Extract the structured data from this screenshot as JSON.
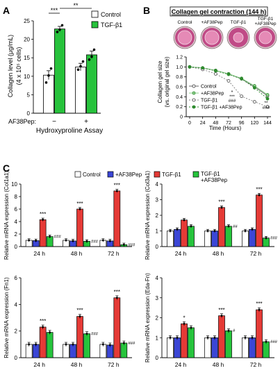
{
  "colors": {
    "control": "#ffffff",
    "af38pep": "#3b46d6",
    "tgfb1": "#e53a36",
    "tgfb1_af38pep": "#26c43c",
    "panelA_tgf": "#27c23c",
    "line_dark": "#2e8b2e",
    "line_light": "#8ed08e",
    "plate_bg": "#c04a86"
  },
  "chart_data": [
    {
      "panel": "A",
      "type": "bar",
      "ylabel_line1": "Collagen level (μg/mL)",
      "ylabel_line2": "(4 x 10⁵ cells)",
      "xlabel": "Hydroxyproline Assay",
      "x_row_label": "AF38Pep:",
      "x_groups": [
        "−",
        "+"
      ],
      "ylim": [
        0,
        25
      ],
      "yticks": [
        "0",
        "5",
        "10",
        "15",
        "20",
        "25"
      ],
      "legend": [
        "Control",
        "TGF-β1"
      ],
      "series": [
        {
          "name": "Control",
          "values": [
            10.3,
            12.5
          ],
          "errors": [
            1.2,
            1.0
          ],
          "points": [
            [
              8.3,
              10.2,
              12.1
            ],
            [
              11.8,
              12.7,
              14.0
            ]
          ]
        },
        {
          "name": "TGF-β1",
          "values": [
            22.8,
            15.8
          ],
          "errors": [
            0.7,
            1.0
          ],
          "points": [
            [
              22.0,
              22.6,
              23.8
            ],
            [
              14.5,
              15.3,
              17.2
            ]
          ]
        }
      ],
      "significance": [
        "***",
        "**"
      ]
    },
    {
      "panel": "B",
      "type": "line",
      "title": "Collagen gel contraction (144 h)",
      "plate_labels": [
        "Control",
        "+AF38Pep",
        "TGF-β1",
        "TGF-β1\n+AF38Pep"
      ],
      "ylabel_line1": "Collagen gel size",
      "ylabel_line2": "(vs. original gel size)",
      "xlabel": "Time (Hours)",
      "x": [
        0,
        24,
        48,
        72,
        96,
        120,
        144
      ],
      "ylim": [
        0,
        1.2
      ],
      "yticks": [
        "0",
        "0.2",
        "0.4",
        "0.6",
        "0.8",
        "1.0",
        "1.2"
      ],
      "series": [
        {
          "name": "Control",
          "y": [
            1.0,
            0.98,
            0.93,
            0.86,
            0.76,
            0.6,
            0.42
          ]
        },
        {
          "name": "+AF38Pep",
          "y": [
            1.0,
            0.98,
            0.93,
            0.86,
            0.77,
            0.62,
            0.44
          ]
        },
        {
          "name": "TGF-β1",
          "y": [
            1.0,
            0.95,
            0.86,
            0.72,
            0.41,
            0.3,
            0.2
          ]
        },
        {
          "name": "TGF-β1 +AF38Pep",
          "y": [
            1.0,
            0.98,
            0.92,
            0.85,
            0.76,
            0.58,
            0.36
          ]
        }
      ],
      "annotations": [
        "*",
        "***",
        "###",
        "**",
        "###"
      ]
    },
    {
      "panel": "C",
      "type": "bar",
      "legend": [
        "Control",
        "+AF38Pep",
        "TGF-β1",
        "TGF-β1\n+AF38Pep"
      ],
      "categories": [
        "24 h",
        "48 h",
        "72 h"
      ],
      "subplots": [
        {
          "ylabel": "Relative mRNA expression (Col1a1)",
          "ylim": [
            0,
            10
          ],
          "yticks": [
            "0",
            "2",
            "4",
            "6",
            "8",
            "10"
          ],
          "values": [
            [
              1.0,
              0.95,
              4.3,
              1.6
            ],
            [
              1.0,
              0.9,
              6.0,
              0.85
            ],
            [
              1.0,
              0.9,
              8.9,
              0.3
            ]
          ],
          "marks_top": [
            "***",
            "***",
            "***"
          ],
          "marks_green": [
            "###",
            "###",
            "###"
          ]
        },
        {
          "ylabel": "Relative mRNA expression (Col3a1)",
          "ylim": [
            0,
            4
          ],
          "yticks": [
            "0",
            "1",
            "2",
            "3",
            "4"
          ],
          "values": [
            [
              1.0,
              1.1,
              1.7,
              1.3
            ],
            [
              1.0,
              1.0,
              2.5,
              1.3
            ],
            [
              1.0,
              1.1,
              3.3,
              0.55
            ]
          ],
          "marks_top": [
            "",
            "***",
            "***"
          ],
          "marks_green": [
            "",
            "##",
            "###"
          ]
        },
        {
          "ylabel": "Relative mRNA expression (Fn1)",
          "ylim": [
            0,
            6
          ],
          "yticks": [
            "0",
            "2",
            "4",
            "6"
          ],
          "values": [
            [
              1.0,
              1.0,
              2.3,
              1.9
            ],
            [
              1.0,
              1.0,
              3.1,
              1.8
            ],
            [
              1.0,
              0.95,
              4.5,
              1.1
            ]
          ],
          "marks_top": [
            "***",
            "***",
            "***"
          ],
          "marks_green": [
            "",
            "###",
            "###"
          ]
        },
        {
          "ylabel": "Relative mRNA expression (Eda-Fn)",
          "ylim": [
            0,
            4
          ],
          "yticks": [
            "0",
            "1",
            "2",
            "3",
            "4"
          ],
          "values": [
            [
              1.0,
              1.0,
              1.7,
              1.5
            ],
            [
              1.0,
              1.0,
              2.1,
              1.35
            ],
            [
              1.0,
              1.0,
              2.4,
              0.8
            ]
          ],
          "marks_top": [
            "*",
            "***",
            "***"
          ],
          "marks_green": [
            "",
            "#",
            "###"
          ]
        }
      ]
    }
  ],
  "panel_letters": [
    "A",
    "B",
    "C"
  ]
}
